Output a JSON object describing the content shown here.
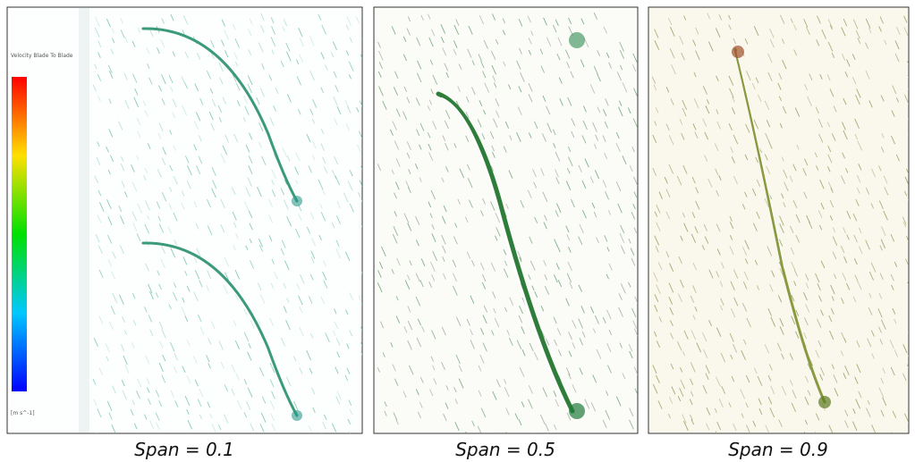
{
  "figure": {
    "legend": {
      "title": "Velocity Blade To Blade",
      "unit": "[m s^-1]"
    },
    "panels": [
      {
        "caption": "Span = 0.1"
      },
      {
        "caption": "Span = 0.5"
      },
      {
        "caption": "Span = 0.9"
      }
    ]
  }
}
